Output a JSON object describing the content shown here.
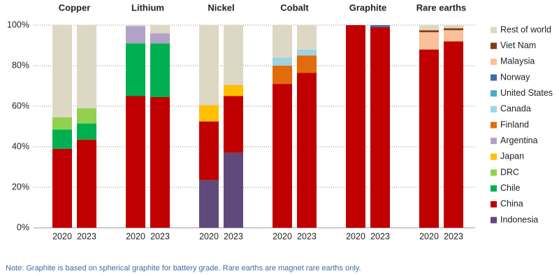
{
  "chart_data": {
    "type": "stacked_bar",
    "groups": [
      "Copper",
      "Lithium",
      "Nickel",
      "Cobalt",
      "Graphite",
      "Rare earths"
    ],
    "categories": [
      "2020",
      "2023",
      "2020",
      "2023",
      "2020",
      "2023",
      "2020",
      "2023",
      "2020",
      "2023",
      "2020",
      "2023"
    ],
    "series": [
      {
        "name": "Indonesia",
        "color": "#604a7b",
        "values": [
          0,
          0,
          0,
          0,
          23.5,
          37,
          0,
          0,
          0,
          0,
          0,
          0
        ]
      },
      {
        "name": "China",
        "color": "#c00000",
        "values": [
          39,
          43.5,
          65,
          64.5,
          29,
          28,
          71,
          76.5,
          100,
          99,
          88,
          92
        ]
      },
      {
        "name": "Chile",
        "color": "#00b050",
        "values": [
          9.5,
          8,
          26,
          26.5,
          0,
          0,
          0,
          0,
          0,
          0,
          0,
          0
        ]
      },
      {
        "name": "DRC",
        "color": "#92d050",
        "values": [
          6,
          7.5,
          0,
          0,
          0,
          0,
          0,
          0,
          0,
          0,
          0,
          0
        ]
      },
      {
        "name": "Japan",
        "color": "#ffc000",
        "values": [
          0,
          0,
          0,
          0,
          8,
          5.5,
          0,
          0,
          0,
          0,
          0,
          0
        ]
      },
      {
        "name": "Argentina",
        "color": "#b3a2c7",
        "values": [
          0,
          0,
          8.5,
          5,
          0,
          0,
          0,
          0,
          0,
          0,
          0,
          0
        ]
      },
      {
        "name": "Finland",
        "color": "#e36c0a",
        "values": [
          0,
          0,
          0,
          0,
          0,
          0,
          9,
          8.5,
          0,
          0,
          0,
          0
        ]
      },
      {
        "name": "Canada",
        "color": "#9fd3e0",
        "values": [
          0,
          0,
          0,
          0,
          0,
          0,
          4,
          3,
          0,
          0,
          0,
          0
        ]
      },
      {
        "name": "United States",
        "color": "#4bacc6",
        "values": [
          0,
          0,
          0,
          0,
          0,
          0,
          0,
          0,
          0,
          0,
          0,
          0
        ]
      },
      {
        "name": "Norway",
        "color": "#3d6ca8",
        "values": [
          0,
          0,
          0,
          0,
          0,
          0,
          0,
          0,
          0,
          1,
          0,
          0
        ]
      },
      {
        "name": "Malaysia",
        "color": "#f8c19a",
        "values": [
          0,
          0,
          0,
          0,
          0,
          0,
          0,
          0,
          0,
          0,
          8.5,
          5.5
        ]
      },
      {
        "name": "Viet Nam",
        "color": "#8b3a0f",
        "values": [
          0,
          0,
          0,
          0,
          0,
          0,
          0,
          0,
          0,
          0,
          1,
          1
        ]
      },
      {
        "name": "Rest of world",
        "color": "#ddd8c4",
        "values": [
          45.5,
          41,
          0.5,
          4,
          39.5,
          29.5,
          16,
          12,
          0,
          0,
          2.5,
          1.5
        ]
      }
    ],
    "ylim": [
      0,
      100
    ],
    "yticks": [
      {
        "value": 0,
        "label": "0%"
      },
      {
        "value": 20,
        "label": "20%"
      },
      {
        "value": 40,
        "label": "40%"
      },
      {
        "value": 60,
        "label": "60%"
      },
      {
        "value": 80,
        "label": "80%"
      },
      {
        "value": 100,
        "label": "100%"
      }
    ],
    "grid": true,
    "legend": "right",
    "note": "Note: Graphite is based on spherical graphite for battery grade. Rare earths are magnet rare earths only."
  }
}
